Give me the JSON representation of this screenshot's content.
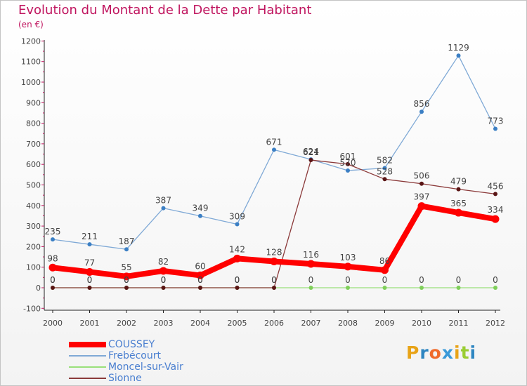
{
  "title": "Evolution du Montant de la Dette par Habitant",
  "subtitle": "(en €)",
  "logo": {
    "text": "Proxiti",
    "letter_colors": [
      "#e8a317",
      "#2e86c1",
      "#f06a2a",
      "#3a9ad9",
      "#e8a317",
      "#9acd32",
      "#2e86c1"
    ]
  },
  "chart_data": {
    "type": "line",
    "title": "Evolution du Montant de la Dette par Habitant",
    "ylabel": "(en €)",
    "xlabel": "",
    "categories": [
      "2000",
      "2001",
      "2002",
      "2003",
      "2004",
      "2005",
      "2006",
      "2007",
      "2008",
      "2009",
      "2010",
      "2011",
      "2012"
    ],
    "ylim": [
      -100,
      1200
    ],
    "yticks": [
      -100,
      0,
      100,
      200,
      300,
      400,
      500,
      600,
      700,
      800,
      900,
      1000,
      1100,
      1200
    ],
    "grid": false,
    "legend": "bottom-left",
    "series": [
      {
        "name": "COUSSEY",
        "color": "#ff0000",
        "marker": "#ff0000",
        "width": 8,
        "values": [
          98,
          77,
          55,
          82,
          60,
          142,
          128,
          116,
          103,
          86,
          397,
          365,
          334
        ]
      },
      {
        "name": "Frebécourt",
        "color": "#7fa9d6",
        "marker": "#3b7fc4",
        "width": 1.3,
        "values": [
          235,
          211,
          187,
          387,
          349,
          309,
          671,
          624,
          570,
          582,
          856,
          1129,
          773
        ]
      },
      {
        "name": "Moncel-sur-Vair",
        "color": "#99e07a",
        "marker": "#7fcf5a",
        "width": 1.3,
        "values": [
          0,
          0,
          0,
          0,
          0,
          0,
          0,
          0,
          0,
          0,
          0,
          0,
          0
        ]
      },
      {
        "name": "Sionne",
        "color": "#8b3a3a",
        "marker": "#5a1515",
        "width": 1.3,
        "values": [
          0,
          0,
          0,
          0,
          0,
          0,
          0,
          621,
          601,
          528,
          506,
          479,
          456
        ]
      }
    ]
  }
}
